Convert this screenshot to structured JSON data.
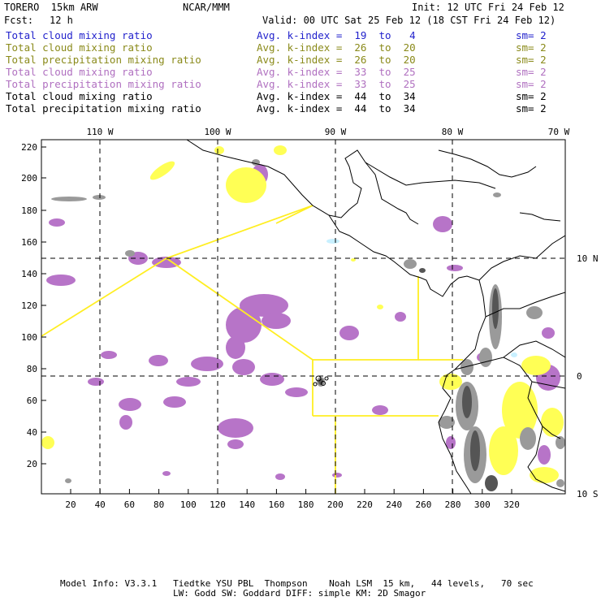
{
  "header": {
    "model": "TORERO  15km ARW",
    "center": "NCAR/MMM",
    "init": "Init: 12 UTC Fri 24 Feb 12",
    "fcst_label": "Fcst:",
    "fcst_value": "12 h",
    "valid": "Valid: 00 UTC Sat 25 Feb 12 (18 CST Fri 24 Feb 12)"
  },
  "legend": [
    {
      "field": "Total cloud mixing ratio",
      "kindex": "Avg. k-index =  19  to   4",
      "sm": "sm= 2",
      "color": "#2222cc"
    },
    {
      "field": "Total cloud mixing ratio",
      "kindex": "Avg. k-index =  26  to  20",
      "sm": "sm= 2",
      "color": "#8a8a1a"
    },
    {
      "field": "Total precipitation mixing ratio",
      "kindex": "Avg. k-index =  26  to  20",
      "sm": "sm= 2",
      "color": "#8a8a1a"
    },
    {
      "field": "Total cloud mixing ratio",
      "kindex": "Avg. k-index =  33  to  25",
      "sm": "sm= 2",
      "color": "#b070c0"
    },
    {
      "field": "Total precipitation mixing ratio",
      "kindex": "Avg. k-index =  33  to  25",
      "sm": "sm= 2",
      "color": "#b070c0"
    },
    {
      "field": "Total cloud mixing ratio",
      "kindex": "Avg. k-index =  44  to  34",
      "sm": "sm= 2",
      "color": "#000000"
    },
    {
      "field": "Total precipitation mixing ratio",
      "kindex": "Avg. k-index =  44  to  34",
      "sm": "sm= 2",
      "color": "#000000"
    }
  ],
  "map": {
    "lon_labels": [
      "110 W",
      "100 W",
      "90 W",
      "80 W",
      "70 W"
    ],
    "lat_labels": [
      "10 N",
      "0",
      "10 S"
    ],
    "y_ticks": [
      "220",
      "200",
      "180",
      "160",
      "140",
      "120",
      "100",
      "80",
      "60",
      "40",
      "20"
    ],
    "x_ticks": [
      "20",
      "40",
      "60",
      "80",
      "100",
      "120",
      "140",
      "160",
      "180",
      "200",
      "220",
      "240",
      "260",
      "280",
      "300",
      "320"
    ],
    "colors": {
      "yellow": "#ffff55",
      "purple": "#b774c8",
      "gray": "#9a9a9a",
      "darkgray": "#555555",
      "cyan": "#c8f0ff",
      "boundary": "#ffee22"
    }
  },
  "footer": {
    "line1": "Model Info: V3.3.1   Tiedtke YSU PBL  Thompson    Noah LSM  15 km,   44 levels,   70 sec",
    "line2": "LW: Godd SW: Goddard DIFF: simple KM: 2D Smagor"
  }
}
